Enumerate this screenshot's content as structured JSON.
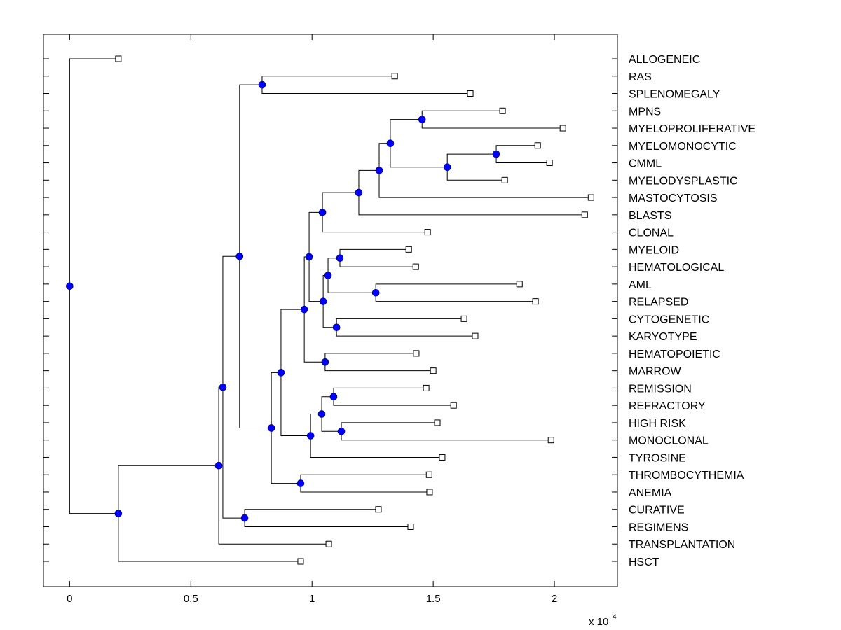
{
  "chart_data": {
    "type": "dendrogram",
    "title": "",
    "xlabel": "",
    "ylabel": "",
    "x_multiplier_label": "x 10",
    "x_multiplier_exponent": "4",
    "xlim": [
      -0.108,
      2.26
    ],
    "xticks": [
      0,
      0.5,
      1,
      1.5,
      2
    ],
    "xtick_labels": [
      "0",
      "0.5",
      "1",
      "1.5",
      "2"
    ],
    "grid": false,
    "orientation": "left-to-right",
    "leaf_order": [
      "ALLOGENEIC",
      "RAS",
      "SPLENOMEGALY",
      "MPNS",
      "MYELOPROLIFERATIVE",
      "MYELOMONOCYTIC",
      "CMML",
      "MYELODYSPLASTIC",
      "MASTOCYTOSIS",
      "BLASTS",
      "CLONAL",
      "MYELOID",
      "HEMATOLOGICAL",
      "AML",
      "RELAPSED",
      "CYTOGENETIC",
      "KARYOTYPE",
      "HEMATOPOIETIC",
      "MARROW",
      "REMISSION",
      "REFRACTORY",
      "HIGH RISK",
      "MONOCLONAL",
      "TYROSINE",
      "THROMBOCYTHEMIA",
      "ANEMIA",
      "CURATIVE",
      "REGIMENS",
      "TRANSPLANTATION",
      "HSCT"
    ],
    "leaf_values": {
      "ALLOGENEIC": 0.201,
      "RAS": 1.341,
      "SPLENOMEGALY": 1.653,
      "MPNS": 1.786,
      "MYELOPROLIFERATIVE": 2.035,
      "MYELOMONOCYTIC": 1.931,
      "CMML": 1.98,
      "MYELODYSPLASTIC": 1.795,
      "MASTOCYTOSIS": 2.151,
      "BLASTS": 2.125,
      "CLONAL": 1.477,
      "MYELOID": 1.399,
      "HEMATOLOGICAL": 1.428,
      "AML": 1.856,
      "RELAPSED": 1.922,
      "CYTOGENETIC": 1.627,
      "KARYOTYPE": 1.673,
      "HEMATOPOIETIC": 1.43,
      "MARROW": 1.5,
      "REMISSION": 1.471,
      "REFRACTORY": 1.584,
      "HIGH RISK": 1.517,
      "MONOCLONAL": 1.986,
      "TYROSINE": 1.537,
      "THROMBOCYTHEMIA": 1.483,
      "ANEMIA": 1.485,
      "CURATIVE": 1.274,
      "REGIMENS": 1.407,
      "TRANSPLANTATION": 1.069,
      "HSCT": 0.953
    },
    "tree": {
      "h": 0.0,
      "children": [
        {
          "leaf": "ALLOGENEIC"
        },
        {
          "h": 0.201,
          "children": [
            {
              "h": 0.615,
              "children": [
                {
                  "h": 0.632,
                  "children": [
                    {
                      "h": 0.701,
                      "children": [
                        {
                          "h": 0.794,
                          "children": [
                            {
                              "leaf": "RAS"
                            },
                            {
                              "leaf": "SPLENOMEGALY"
                            }
                          ]
                        },
                        {
                          "h": 0.832,
                          "children": [
                            {
                              "h": 0.872,
                              "children": [
                                {
                                  "h": 0.968,
                                  "children": [
                                    {
                                      "h": 0.988,
                                      "children": [
                                        {
                                          "h": 1.043,
                                          "children": [
                                            {
                                              "h": 1.193,
                                              "children": [
                                                {
                                                  "h": 1.277,
                                                  "children": [
                                                    {
                                                      "h": 1.323,
                                                      "children": [
                                                        {
                                                          "h": 1.454,
                                                          "children": [
                                                            {
                                                              "leaf": "MPNS"
                                                            },
                                                            {
                                                              "leaf": "MYELOPROLIFERATIVE"
                                                            }
                                                          ]
                                                        },
                                                        {
                                                          "h": 1.558,
                                                          "children": [
                                                            {
                                                              "h": 1.76,
                                                              "children": [
                                                                {
                                                                  "leaf": "MYELOMONOCYTIC"
                                                                },
                                                                {
                                                                  "leaf": "CMML"
                                                                }
                                                              ]
                                                            },
                                                            {
                                                              "leaf": "MYELODYSPLASTIC"
                                                            }
                                                          ]
                                                        }
                                                      ]
                                                    },
                                                    {
                                                      "leaf": "MASTOCYTOSIS"
                                                    }
                                                  ]
                                                },
                                                {
                                                  "leaf": "BLASTS"
                                                }
                                              ]
                                            },
                                            {
                                              "leaf": "CLONAL"
                                            }
                                          ]
                                        },
                                        {
                                          "h": 1.046,
                                          "children": [
                                            {
                                              "h": 1.066,
                                              "children": [
                                                {
                                                  "h": 1.115,
                                                  "children": [
                                                    {
                                                      "leaf": "MYELOID"
                                                    },
                                                    {
                                                      "leaf": "HEMATOLOGICAL"
                                                    }
                                                  ]
                                                },
                                                {
                                                  "h": 1.263,
                                                  "children": [
                                                    {
                                                      "leaf": "AML"
                                                    },
                                                    {
                                                      "leaf": "RELAPSED"
                                                    }
                                                  ]
                                                }
                                              ]
                                            },
                                            {
                                              "h": 1.101,
                                              "children": [
                                                {
                                                  "leaf": "CYTOGENETIC"
                                                },
                                                {
                                                  "leaf": "KARYOTYPE"
                                                }
                                              ]
                                            }
                                          ]
                                        }
                                      ]
                                    },
                                    {
                                      "h": 1.054,
                                      "children": [
                                        {
                                          "leaf": "HEMATOPOIETIC"
                                        },
                                        {
                                          "leaf": "MARROW"
                                        }
                                      ]
                                    }
                                  ]
                                },
                                {
                                  "h": 0.994,
                                  "children": [
                                    {
                                      "h": 1.04,
                                      "children": [
                                        {
                                          "h": 1.089,
                                          "children": [
                                            {
                                              "leaf": "REMISSION"
                                            },
                                            {
                                              "leaf": "REFRACTORY"
                                            }
                                          ]
                                        },
                                        {
                                          "h": 1.121,
                                          "children": [
                                            {
                                              "leaf": "HIGH RISK"
                                            },
                                            {
                                              "leaf": "MONOCLONAL"
                                            }
                                          ]
                                        }
                                      ]
                                    },
                                    {
                                      "leaf": "TYROSINE"
                                    }
                                  ]
                                }
                              ]
                            },
                            {
                              "h": 0.953,
                              "children": [
                                {
                                  "leaf": "THROMBOCYTHEMIA"
                                },
                                {
                                  "leaf": "ANEMIA"
                                }
                              ]
                            }
                          ]
                        }
                      ]
                    },
                    {
                      "h": 0.722,
                      "children": [
                        {
                          "leaf": "CURATIVE"
                        },
                        {
                          "leaf": "REGIMENS"
                        }
                      ]
                    }
                  ]
                },
                {
                  "leaf": "TRANSPLANTATION"
                }
              ]
            },
            {
              "leaf": "HSCT"
            }
          ]
        }
      ]
    },
    "colors": {
      "internal_node": "#0000ff",
      "leaf_marker": "#ffffff",
      "lines": "#000000"
    }
  }
}
